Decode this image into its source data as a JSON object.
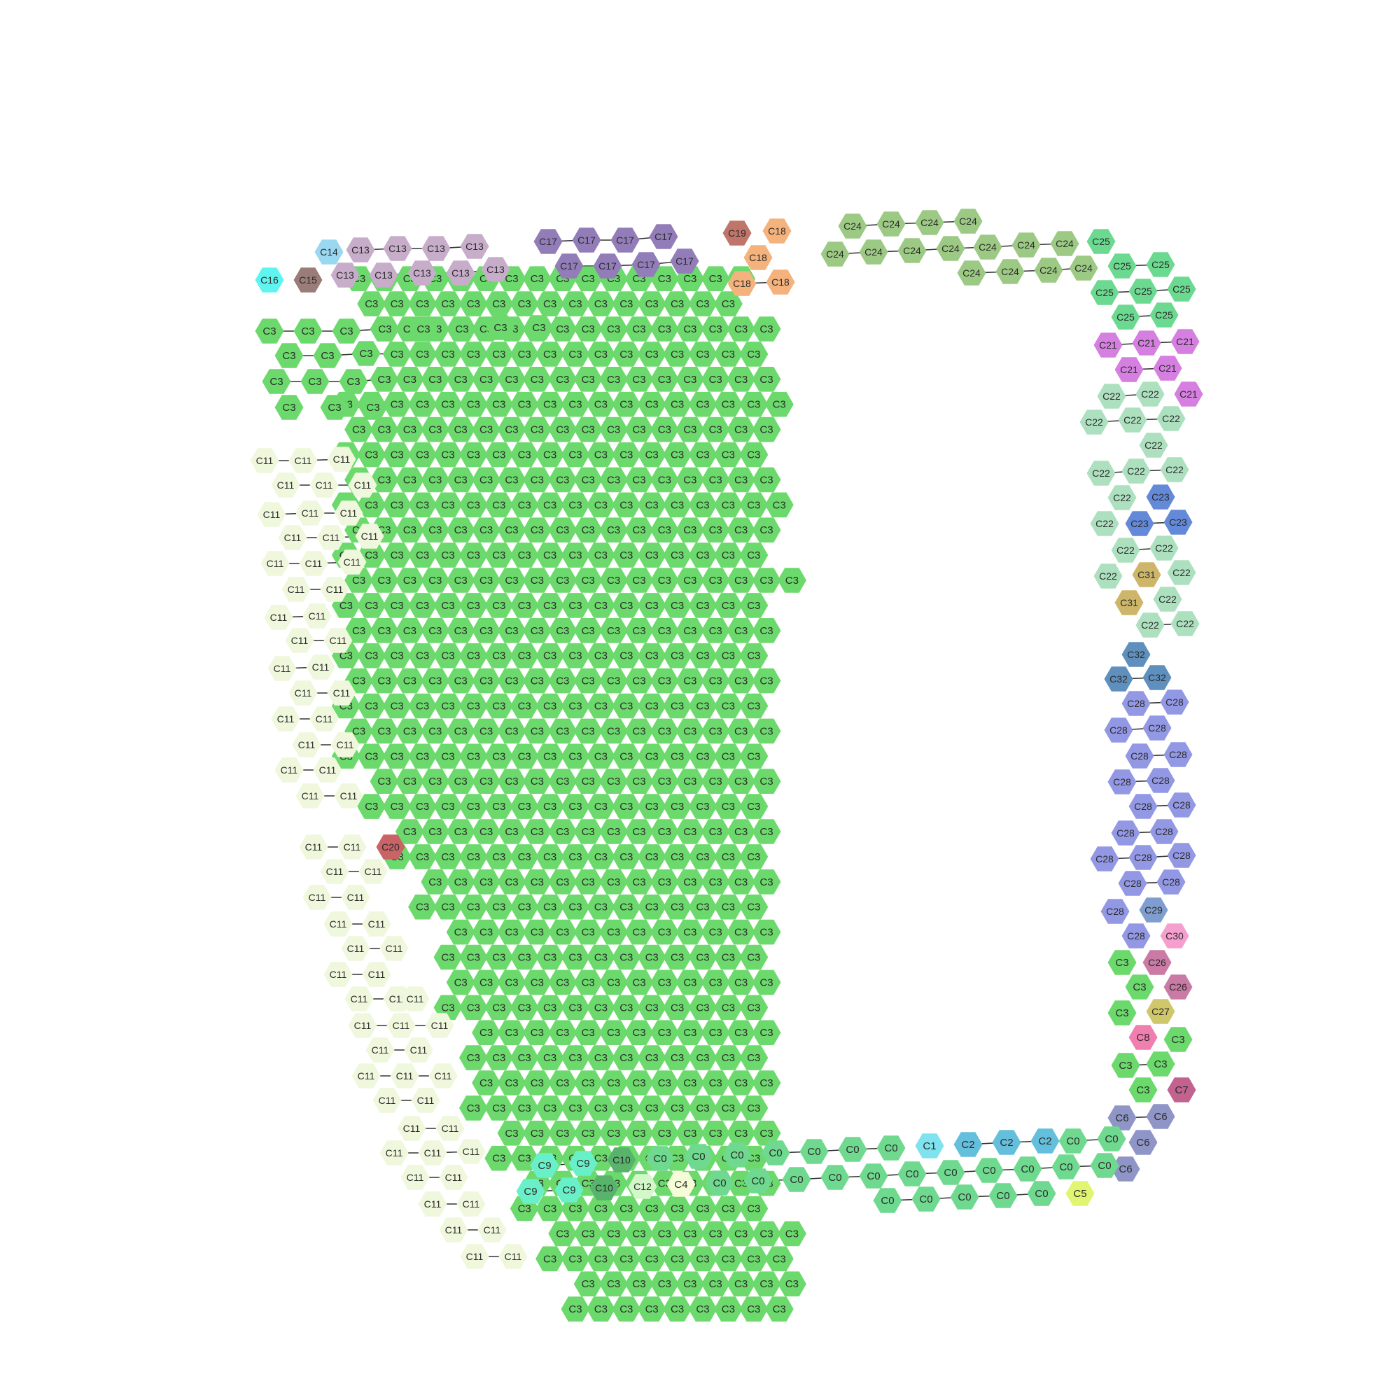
{
  "clusters": {
    "C0": {
      "label": "C0",
      "color": "#6fd98f"
    },
    "C1": {
      "label": "C1",
      "color": "#7fe2ee"
    },
    "C2": {
      "label": "C2",
      "color": "#64bfdc"
    },
    "C3": {
      "label": "C3",
      "color": "#6bd96b"
    },
    "C4": {
      "label": "C4",
      "color": "#f7fcd8"
    },
    "C5": {
      "label": "C5",
      "color": "#e2f571"
    },
    "C6": {
      "label": "C6",
      "color": "#8f95c7"
    },
    "C7": {
      "label": "C7",
      "color": "#c2638f"
    },
    "C8": {
      "label": "C8",
      "color": "#f07fb0"
    },
    "C9": {
      "label": "C9",
      "color": "#6af0c8"
    },
    "C10": {
      "label": "C10",
      "color": "#58b36b"
    },
    "C11": {
      "label": "C11",
      "color": "#eff7dc"
    },
    "C12": {
      "label": "C12",
      "color": "#d3f7c8"
    },
    "C13": {
      "label": "C13",
      "color": "#c7adca"
    },
    "C14": {
      "label": "C14",
      "color": "#9ad8f2"
    },
    "C15": {
      "label": "C15",
      "color": "#9a7d78"
    },
    "C16": {
      "label": "C16",
      "color": "#5ef5f0"
    },
    "C17": {
      "label": "C17",
      "color": "#937db9"
    },
    "C18": {
      "label": "C18",
      "color": "#f4b27c"
    },
    "C19": {
      "label": "C19",
      "color": "#c0756a"
    },
    "C20": {
      "label": "C20",
      "color": "#c96366"
    },
    "C21": {
      "label": "C21",
      "color": "#d57fe0"
    },
    "C22": {
      "label": "C22",
      "color": "#ade0bf"
    },
    "C23": {
      "label": "C23",
      "color": "#6389d8"
    },
    "C24": {
      "label": "C24",
      "color": "#9cc983"
    },
    "C25": {
      "label": "C25",
      "color": "#6bd990"
    },
    "C26": {
      "label": "C26",
      "color": "#c97aa5"
    },
    "C27": {
      "label": "C27",
      "color": "#cfc769"
    },
    "C28": {
      "label": "C28",
      "color": "#9398e5"
    },
    "C29": {
      "label": "C29",
      "color": "#7f9dce"
    },
    "C30": {
      "label": "C30",
      "color": "#f59fcf"
    },
    "C31": {
      "label": "C31",
      "color": "#cdb56a"
    },
    "C32": {
      "label": "C32",
      "color": "#5f8fbd"
    }
  }
}
